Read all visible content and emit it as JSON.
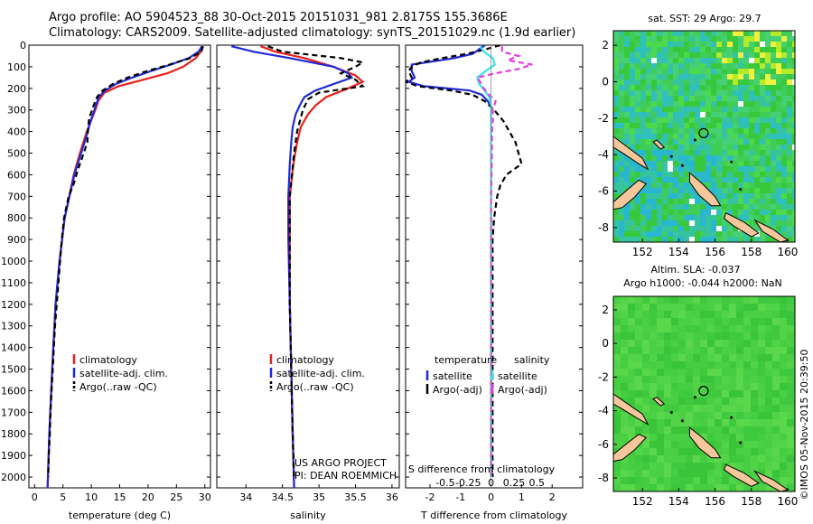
{
  "header": {
    "title_line1": "Argo profile: AO 5904523_88 30-Oct-2015 20151031_981 2.8175S 155.3686E",
    "title_line2": "Climatology: CARS2009. Satellite-adjusted climatology: synTS_20151029.nc (1.9d earlier)"
  },
  "colors": {
    "climatology": "#e8201a",
    "satellite": "#1f2ad6",
    "argo": "#000000",
    "sal_satellite": "#33e4f0",
    "sal_argo": "#e83ae0",
    "ocean_green": "#3cc93c",
    "land": "#f7c79c"
  },
  "chart_data": [
    {
      "type": "line",
      "id": "temperature",
      "xlabel": "temperature (deg C)",
      "ylabel": "",
      "xlim": [
        -1,
        31
      ],
      "ylim": [
        2050,
        0
      ],
      "xticks": [
        0,
        5,
        10,
        15,
        20,
        25,
        30
      ],
      "yticks": [
        0,
        100,
        200,
        300,
        400,
        500,
        600,
        700,
        800,
        900,
        1000,
        1100,
        1200,
        1300,
        1400,
        1500,
        1600,
        1700,
        1800,
        1900,
        2000
      ],
      "legend": [
        "climatology",
        "satellite-adj. clim.",
        "Argo(..raw -QC)"
      ],
      "series": [
        {
          "name": "climatology",
          "color": "red",
          "depth": [
            5,
            30,
            60,
            100,
            130,
            160,
            190,
            220,
            260,
            300,
            400,
            500,
            600,
            800,
            1000,
            1200,
            1500,
            1800,
            2050
          ],
          "values": [
            29.6,
            29.3,
            28.4,
            26.2,
            23.4,
            19.2,
            14.8,
            12.3,
            11.2,
            10.7,
            9.2,
            8.0,
            6.9,
            5.3,
            4.4,
            3.7,
            3.1,
            2.6,
            2.3
          ]
        },
        {
          "name": "satellite",
          "color": "blue",
          "depth": [
            5,
            30,
            60,
            90,
            120,
            150,
            180,
            210,
            240,
            280,
            350,
            450,
            600,
            800,
            1000,
            1200,
            1500,
            1800,
            2050
          ],
          "values": [
            29.5,
            28.9,
            27.2,
            24.0,
            20.5,
            17.2,
            14.3,
            12.4,
            11.3,
            10.8,
            9.9,
            8.8,
            7.0,
            5.3,
            4.4,
            3.7,
            3.1,
            2.6,
            2.3
          ]
        },
        {
          "name": "argo",
          "color": "black",
          "depth": [
            5,
            30,
            60,
            90,
            120,
            150,
            180,
            210,
            240,
            280,
            340,
            400,
            450,
            520,
            580,
            650,
            700,
            800,
            900,
            1000,
            1100,
            1200,
            1300,
            1400,
            1500,
            1600,
            1700,
            1800,
            1900,
            2000
          ],
          "values": [
            29.7,
            29.4,
            27.4,
            23.8,
            19.8,
            16.4,
            13.8,
            12.0,
            11.0,
            10.4,
            9.6,
            9.4,
            9.3,
            8.4,
            7.6,
            6.8,
            6.0,
            5.2,
            4.8,
            4.5,
            4.2,
            3.9,
            3.6,
            3.4,
            3.2,
            3.0,
            2.8,
            2.7,
            2.5,
            2.4
          ]
        }
      ]
    },
    {
      "type": "line",
      "id": "salinity",
      "xlabel": "salinity",
      "xlim": [
        33.6,
        36.1
      ],
      "ylim": [
        2050,
        0
      ],
      "xticks": [
        34,
        34.5,
        35,
        35.5,
        36
      ],
      "xtick_labels": [
        "34",
        "34.5",
        "35",
        "35.5",
        "36"
      ],
      "legend": [
        "climatology",
        "satellite-adj. clim.",
        "Argo(..raw -QC)"
      ],
      "annotation": [
        "US ARGO PROJECT",
        "PI: DEAN ROEMMICH"
      ],
      "series": [
        {
          "name": "climatology",
          "color": "red",
          "depth": [
            5,
            30,
            60,
            100,
            140,
            170,
            200,
            240,
            280,
            320,
            380,
            450,
            550,
            700,
            900,
            1200,
            1500,
            1800,
            2050
          ],
          "values": [
            34.2,
            34.4,
            34.8,
            35.2,
            35.5,
            35.6,
            35.4,
            35.1,
            34.95,
            34.85,
            34.75,
            34.7,
            34.65,
            34.6,
            34.6,
            34.6,
            34.62,
            34.64,
            34.66
          ]
        },
        {
          "name": "satellite",
          "color": "blue",
          "depth": [
            5,
            30,
            60,
            100,
            130,
            150,
            180,
            210,
            240,
            270,
            320,
            380,
            450,
            550,
            700,
            900,
            1200,
            1500,
            1800,
            2050
          ],
          "values": [
            33.8,
            34.1,
            34.6,
            35.2,
            35.4,
            35.45,
            35.2,
            34.95,
            34.8,
            34.75,
            34.68,
            34.64,
            34.62,
            34.6,
            34.58,
            34.58,
            34.6,
            34.62,
            34.64,
            34.66
          ]
        },
        {
          "name": "argo",
          "color": "black",
          "depth": [
            5,
            30,
            60,
            80,
            100,
            130,
            160,
            190,
            220,
            250,
            300,
            400,
            500,
            600,
            700,
            900,
            1200,
            1500,
            1800,
            2000
          ],
          "values": [
            34.3,
            34.5,
            35.3,
            35.6,
            35.5,
            35.3,
            35.5,
            35.6,
            35.0,
            34.85,
            34.78,
            34.7,
            34.66,
            34.63,
            34.6,
            34.6,
            34.6,
            34.62,
            34.64,
            34.66
          ]
        }
      ]
    },
    {
      "type": "line",
      "id": "difference",
      "xlabel": "T difference from climatology",
      "xlim": [
        -2.8,
        3.0
      ],
      "ylim": [
        2050,
        0
      ],
      "xticks": [
        -2,
        -1,
        0,
        1,
        2
      ],
      "top_axis_label": "S difference from climatology",
      "top_ticks": [
        -0.5,
        -0.25,
        0,
        0.25,
        0.5
      ],
      "top_tick_labels": [
        "-0.5",
        "-0.25",
        "0",
        "0.25",
        "0.5"
      ],
      "legend_temperature_title": "temperature",
      "legend_salinity_title": "salinity",
      "legend_temperature": [
        "satellite",
        "Argo(-adj)"
      ],
      "legend_salinity": [
        "satellite",
        "Argo(-adj)"
      ],
      "series": [
        {
          "name": "T satellite",
          "color": "blue",
          "depth": [
            0,
            20,
            40,
            60,
            90,
            120,
            150,
            170,
            190,
            210,
            230,
            260,
            290,
            320
          ],
          "values": [
            -0.2,
            -0.4,
            -0.6,
            -1.2,
            -2.6,
            -2.6,
            -2.5,
            -2.7,
            -2.2,
            -0.7,
            -0.3,
            -0.1,
            0,
            0
          ]
        },
        {
          "name": "T argo",
          "color": "black",
          "depth": [
            0,
            20,
            40,
            60,
            80,
            100,
            120,
            150,
            170,
            190,
            210,
            230,
            260,
            300,
            350,
            400,
            450,
            500,
            550,
            600,
            650,
            700,
            800,
            900,
            1000,
            1200,
            1500,
            1800,
            2000
          ],
          "values": [
            0.3,
            -0.2,
            -0.8,
            -1.6,
            -2.3,
            -2.6,
            -2.7,
            -2.6,
            -2.8,
            -2.4,
            -1.3,
            -0.6,
            -0.2,
            0.1,
            0.4,
            0.6,
            0.8,
            0.9,
            1.0,
            0.5,
            0.3,
            0.2,
            0.1,
            0.05,
            0.05,
            0.05,
            0.05,
            0.05,
            0.05
          ]
        },
        {
          "name": "S satellite",
          "color": "cyan",
          "depth": [
            5,
            30,
            60,
            90,
            120,
            150,
            180,
            210,
            240,
            280,
            350,
            500,
            800,
            1200,
            1600,
            2000
          ],
          "values": [
            -0.12,
            -0.08,
            0.02,
            0.04,
            -0.06,
            -0.15,
            -0.13,
            -0.07,
            -0.02,
            0,
            0,
            0,
            0,
            0,
            0,
            0
          ]
        },
        {
          "name": "S argo",
          "color": "magenta",
          "depth": [
            5,
            30,
            50,
            70,
            90,
            110,
            130,
            150,
            170,
            200,
            230,
            260,
            300,
            350,
            400,
            500,
            700,
            900,
            1200,
            1600,
            2000
          ],
          "values": [
            0.12,
            0.12,
            0.3,
            0.18,
            0.45,
            0.3,
            0.05,
            -0.15,
            -0.12,
            -0.08,
            -0.02,
            0.05,
            0.02,
            0.02,
            0.01,
            0.01,
            0,
            0,
            0,
            0,
            0
          ]
        }
      ]
    },
    {
      "type": "heatmap",
      "id": "sst_map",
      "title": "sat. SST: 29 Argo: 29.7",
      "xticks": [
        152,
        154,
        156,
        158,
        160
      ],
      "yticks": [
        2,
        0,
        -2,
        -4,
        -6,
        -8
      ],
      "xlim": [
        150.4,
        160.4
      ],
      "ylim": [
        -8.8,
        2.8
      ],
      "argo_location": [
        155.37,
        -2.82
      ]
    },
    {
      "type": "heatmap",
      "id": "sla_map",
      "title_line1": "Altim. SLA: -0.037",
      "title_line2": "Argo h1000: -0.044 h2000: NaN",
      "xticks": [
        152,
        154,
        156,
        158,
        160
      ],
      "yticks": [
        2,
        0,
        -2,
        -4,
        -6,
        -8
      ],
      "xlim": [
        150.4,
        160.4
      ],
      "ylim": [
        -8.8,
        2.8
      ],
      "argo_location": [
        155.37,
        -2.82
      ]
    }
  ],
  "footer": {
    "credit": "©IMOS 05-Nov-2015 20:39:50"
  }
}
